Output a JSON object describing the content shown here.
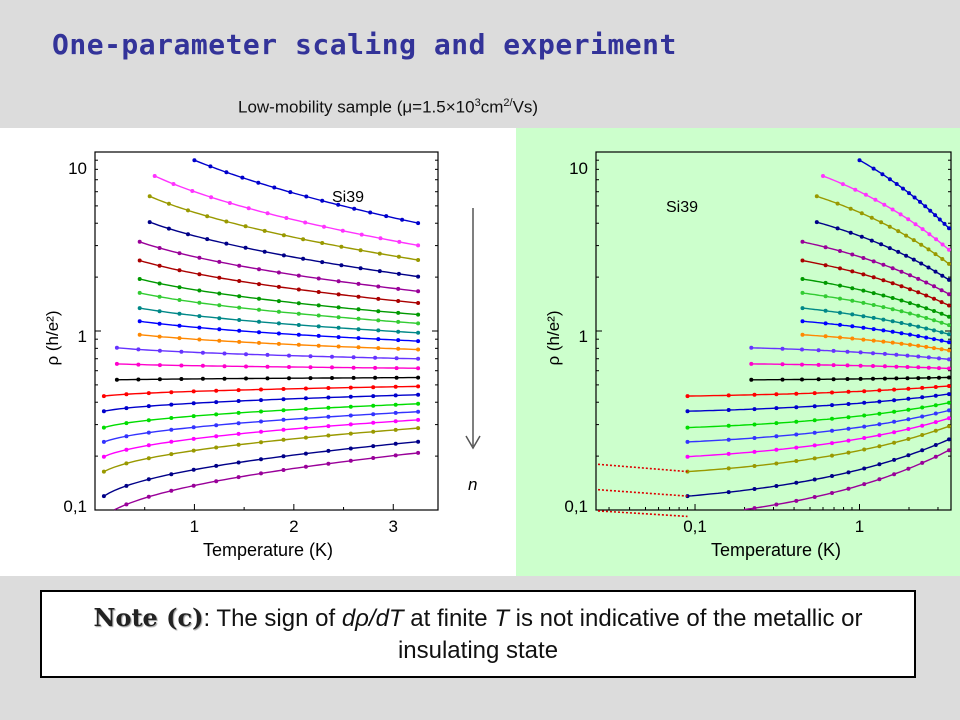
{
  "slide": {
    "title": "One-parameter scaling and experiment",
    "subtitle_prefix": "Low-mobility sample (μ=1.5×10",
    "subtitle_sup1": "3",
    "subtitle_mid": "cm",
    "subtitle_sup2": "2/",
    "subtitle_suffix": "Vs)",
    "note": {
      "lead": "Note (c)",
      "part1": ": The sign of ",
      "italic1": "dρ/dT",
      "part2": " at finite ",
      "italic2": "T",
      "part3": " is not indicative of the metallic or insulating state"
    },
    "arrow_label": "n"
  },
  "chart_data": [
    {
      "type": "line",
      "scale": "linear-x, log-y",
      "sample_label": "Si39",
      "xlabel": "Temperature (K)",
      "ylabel": "ρ (h/e²)",
      "xlim": [
        0,
        3.45
      ],
      "ylim": [
        0.1,
        10
      ],
      "xticks": [
        "1",
        "2",
        "3"
      ],
      "yticks": [
        "0,1",
        "1",
        "10"
      ],
      "grid": false
    },
    {
      "type": "line",
      "scale": "log-x, log-y",
      "sample_label": "Si39",
      "xlabel": "Temperature (K)",
      "ylabel": "ρ (h/e²)",
      "xlim": [
        0.025,
        3.6
      ],
      "ylim": [
        0.1,
        10
      ],
      "xticks": [
        "0,1",
        "1"
      ],
      "yticks": [
        "0,1",
        "1",
        "10"
      ],
      "grid": false,
      "extrapolated_series": [
        "bottom three curves, dotted red lines toward T→0"
      ]
    }
  ],
  "series": [
    {
      "color": "#0000cc",
      "r0": 9.0,
      "Tmin": 1.0
    },
    {
      "color": "#ff33ff",
      "r0": 6.0,
      "Tmin": 0.6
    },
    {
      "color": "#999900",
      "r0": 4.6,
      "Tmin": 0.55
    },
    {
      "color": "#000088",
      "r0": 3.4,
      "Tmin": 0.55
    },
    {
      "color": "#990099",
      "r0": 2.6,
      "Tmin": 0.45
    },
    {
      "color": "#aa0000",
      "r0": 2.1,
      "Tmin": 0.45
    },
    {
      "color": "#009900",
      "r0": 1.7,
      "Tmin": 0.45
    },
    {
      "color": "#33cc33",
      "r0": 1.45,
      "Tmin": 0.45
    },
    {
      "color": "#008888",
      "r0": 1.22,
      "Tmin": 0.45
    },
    {
      "color": "#0000ff",
      "r0": 1.05,
      "Tmin": 0.45
    },
    {
      "color": "#ff8800",
      "r0": 0.9,
      "Tmin": 0.45
    },
    {
      "color": "#6633ff",
      "r0": 0.76,
      "Tmin": 0.22
    },
    {
      "color": "#ff00cc",
      "r0": 0.64,
      "Tmin": 0.22
    },
    {
      "color": "#000000",
      "r0": 0.54,
      "Tmin": 0.22
    },
    {
      "color": "#ff0000",
      "r0": 0.46,
      "Tmin": 0.09
    },
    {
      "color": "#0000cc",
      "r0": 0.395,
      "Tmin": 0.09
    },
    {
      "color": "#00dd00",
      "r0": 0.335,
      "Tmin": 0.09
    },
    {
      "color": "#3333ff",
      "r0": 0.29,
      "Tmin": 0.09
    },
    {
      "color": "#ff00ff",
      "r0": 0.25,
      "Tmin": 0.09
    },
    {
      "color": "#999900",
      "r0": 0.215,
      "Tmin": 0.09
    },
    {
      "color": "#000088",
      "r0": 0.168,
      "Tmin": 0.09
    },
    {
      "color": "#990099",
      "r0": 0.137,
      "Tmin": 0.09
    }
  ]
}
